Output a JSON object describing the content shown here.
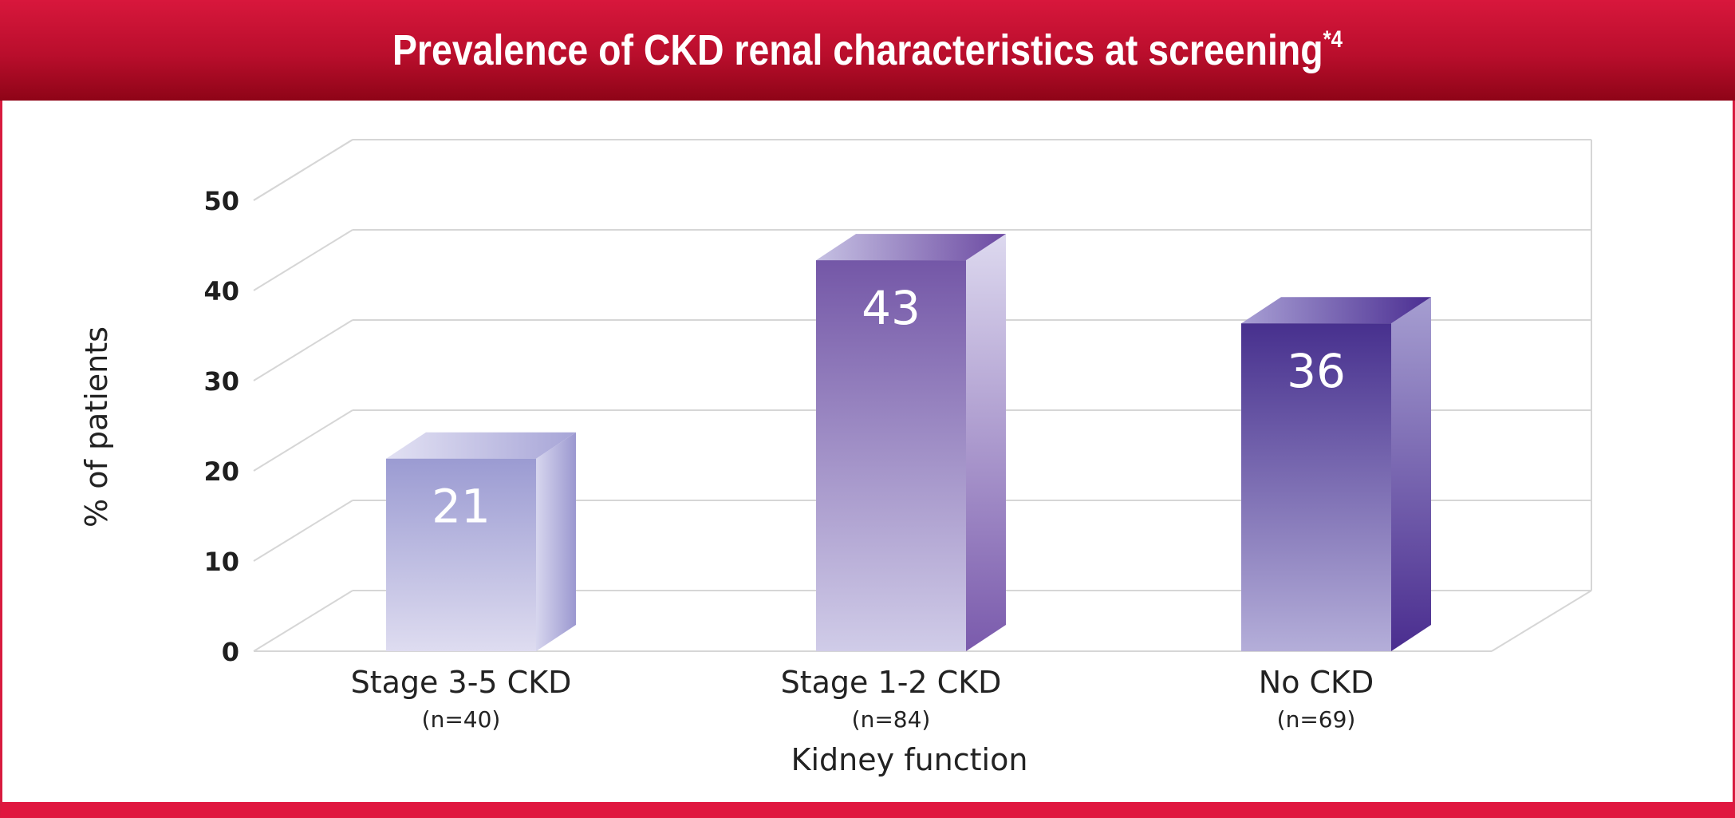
{
  "header": {
    "title": "Prevalence of CKD renal characteristics at screening",
    "title_superscript": "*4"
  },
  "chart_data": {
    "type": "bar",
    "title": "Prevalence of CKD renal characteristics at screening*4",
    "xlabel": "Kidney function",
    "ylabel": "% of patients",
    "ylim": [
      0,
      50
    ],
    "yticks": [
      0,
      10,
      20,
      30,
      40,
      50
    ],
    "grid": true,
    "categories": [
      "Stage 3-5 CKD",
      "Stage 1-2 CKD",
      "No CKD"
    ],
    "category_sublabels": [
      "(n=40)",
      "(n=84)",
      "(n=69)"
    ],
    "values": [
      21,
      43,
      36
    ],
    "data_labels": [
      "21",
      "43",
      "36"
    ]
  },
  "colors": {
    "header_top": "#d8173c",
    "header_bottom": "#8e0417",
    "border": "#e0173f",
    "bar_light": "#9a98d0",
    "bar_mid": "#7257a8",
    "bar_dark": "#4a2d8f"
  }
}
